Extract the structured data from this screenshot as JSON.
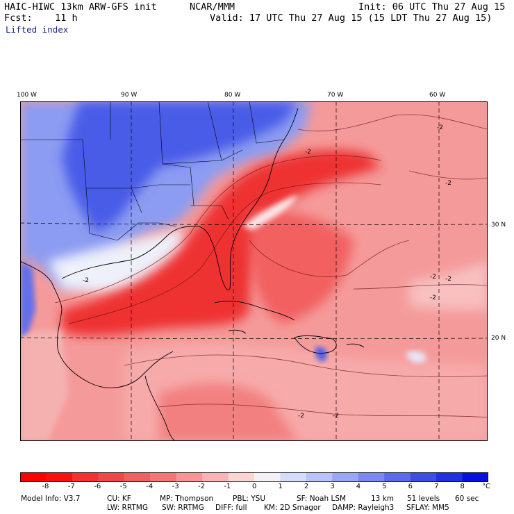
{
  "header": {
    "model": "HAIC-HIWC 13km ARW-GFS init",
    "org": "NCAR/MMM",
    "init": "Init: 06 UTC Thu 27 Aug 15",
    "fcst": "Fcst:    11 h",
    "valid": "Valid: 17 UTC Thu 27 Aug 15 (15 LDT Thu 27 Aug 15)",
    "field": "Lifted index"
  },
  "map": {
    "lon_labels": [
      "100 W",
      "90 W",
      "80 W",
      "70 W",
      "60 W"
    ],
    "lat_labels": [
      "30 N",
      "20 N"
    ],
    "contour_label": "-2",
    "colors": {
      "strong_neg": "#ee2020",
      "mid_neg": "#f26a6a",
      "weak_neg": "#f8b4b4",
      "neutral": "#f4f0f4",
      "weak_pos": "#c8d0f8",
      "mid_pos": "#7a90f0",
      "strong_pos": "#3c4ee8"
    }
  },
  "colorbar": {
    "labels": [
      "-8",
      "-7",
      "-6",
      "-5",
      "-4",
      "-3",
      "-2",
      "-1",
      "0",
      "1",
      "2",
      "3",
      "4",
      "5",
      "6",
      "7",
      "8"
    ],
    "unit": "°C",
    "colors": [
      "#ff0000",
      "#f81010",
      "#f43030",
      "#f04848",
      "#f06060",
      "#f27878",
      "#f59595",
      "#f8b4b4",
      "#fbd4d4",
      "#f6f0f6",
      "#d4dcfa",
      "#b8c4f8",
      "#9aa8f4",
      "#7a88f0",
      "#5c6aec",
      "#3e4ce8",
      "#2230e4",
      "#0810e0"
    ]
  },
  "footer": {
    "line1": [
      "Model Info: V3.7",
      "CU: KF",
      "MP: Thompson",
      "PBL: YSU",
      "SF: Noah LSM",
      "13 km",
      "51 levels",
      "60 sec"
    ],
    "line2": [
      "LW: RRTMG",
      "SW: RRTMG",
      "DIFF: full",
      "KM: 2D Smagor",
      "DAMP: Rayleigh3",
      "SFLAY: MM5"
    ]
  }
}
